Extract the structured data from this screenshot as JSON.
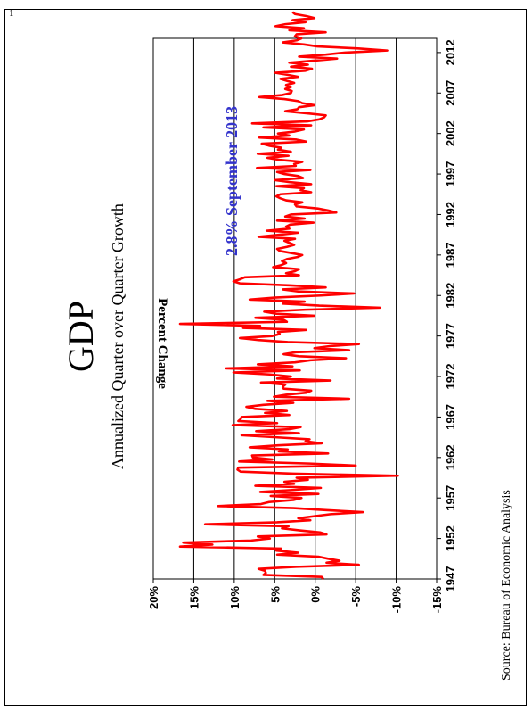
{
  "page_number": "1",
  "source": "Source: Bureau of Economic Analysis",
  "chart_data": {
    "type": "line",
    "title": "GDP",
    "subtitle": "Annualized Quarter over Quarter Growth",
    "annotation": "2.8% September 2013",
    "ylabel": "Percent Change",
    "xlabel": "",
    "xlim": [
      1947,
      2013.75
    ],
    "ylim": [
      -15,
      20
    ],
    "x_ticks": [
      1947,
      1952,
      1957,
      1962,
      1967,
      1972,
      1977,
      1982,
      1987,
      1992,
      1997,
      2002,
      2007,
      2012
    ],
    "y_ticks": [
      20,
      15,
      10,
      5,
      0,
      -5,
      -10,
      -15
    ],
    "y_tick_labels": [
      "20%",
      "15%",
      "10%",
      "5%",
      "0%",
      "-5%",
      "-10%",
      "-15%"
    ],
    "grid": "horizontal",
    "orientation": "rotated 90° counter-clockwise on the page",
    "colors": {
      "line": "#ff0000",
      "annotation": "#3333cc",
      "text": "#000000"
    },
    "series": [
      {
        "start_year": 1947.0,
        "step": 0.25,
        "values": [
          -1.0,
          -0.8,
          6.4,
          6.1,
          6.2,
          7.0,
          2.3,
          -5.4,
          -1.4,
          -3.0,
          -1.6,
          -0.4,
          4.7,
          2.1,
          4.8,
          4.2,
          16.7,
          12.7,
          16.3,
          7.9,
          5.6,
          7.1,
          -1.4,
          -0.6,
          1.9,
          4.1,
          3.3,
          13.6,
          4.7,
          0.6,
          2.1,
          0.1,
          -1.9,
          -5.9,
          -1.3,
          2.7,
          12.0,
          6.7,
          5.7,
          2.7,
          1.7,
          5.5,
          -0.4,
          6.8,
          2.6,
          -0.7,
          7.4,
          2.6,
          3.8,
          0.9,
          2.3,
          -10.2,
          2.7,
          9.2,
          9.6,
          9.5,
          -5.0,
          0.7,
          9.4,
          5.3,
          7.7,
          7.8,
          -1.6,
          4.5,
          3.4,
          8.1,
          4.6,
          -0.8,
          1.2,
          0.7,
          4.9,
          9.1,
          2.0,
          7.3,
          3.2,
          1.8,
          10.2,
          4.7,
          9.5,
          9.2,
          9.1,
          3.2,
          6.2,
          3.5,
          7.4,
          8.5,
          6.4,
          2.7,
          5.9,
          -4.2,
          5.1,
          3.6,
          1.1,
          0.5,
          3.9,
          4.0,
          3.7,
          6.7,
          -1.9,
          4.7,
          3.0,
          5.6,
          10.1,
          1.9,
          11.0,
          2.8,
          7.1,
          2.5,
          0.6,
          -3.8,
          2.0,
          3.9,
          2.4,
          -4.2,
          0.1,
          -1.8,
          -5.4,
          3.4,
          7.0,
          9.3,
          5.3,
          4.4,
          4.6,
          1.1,
          8.9,
          6.8,
          16.7,
          3.5,
          3.9,
          7.4,
          0.1,
          4.8,
          6.3,
          1.2,
          -8.0,
          -0.5,
          4.0,
          1.3,
          8.1,
          5.0,
          -0.7,
          -4.8,
          2.1,
          4.0,
          -1.3,
          3.0,
          9.3,
          10.1,
          9.3,
          8.7,
          2.0,
          3.6,
          2.5,
          2.0,
          5.2,
          4.2,
          3.6,
          4.1,
          3.5,
          2.2,
          1.6,
          3.0,
          4.4,
          4.7,
          3.5,
          2.6,
          3.2,
          3.8,
          2.5,
          7.0,
          4.5,
          2.1,
          6.0,
          3.2,
          3.6,
          3.1,
          0.2,
          4.7,
          1.3,
          3.7,
          3.0,
          -2.6,
          -1.6,
          -0.3,
          2.3,
          2.5,
          1.6,
          3.6,
          4.3,
          4.8,
          4.3,
          0.5,
          1.8,
          1.4,
          4.8,
          0.5,
          3.1,
          5.0,
          1.5,
          2.1,
          3.8,
          4.7,
          0.6,
          7.2,
          2.4,
          2.6,
          1.6,
          4.4,
          5.9,
          3.3,
          7.1,
          3.0,
          4.6,
          4.2,
          5.7,
          6.6,
          1.1,
          2.3,
          6.9,
          3.2,
          4.6,
          2.5,
          1.4,
          6.4,
          0.5,
          7.8,
          1.0,
          -0.5,
          -1.1,
          -1.3,
          1.1,
          3.7,
          2.2,
          2.0,
          0.1,
          1.6,
          2.1,
          3.8,
          6.9,
          4.1,
          3.0,
          2.9,
          3.7,
          3.0,
          3.6,
          2.6,
          3.5,
          4.3,
          2.1,
          3.4,
          4.9,
          1.2,
          0.4,
          3.0,
          0.9,
          3.2,
          0.1,
          -2.7,
          2.0,
          -1.3,
          -3.7,
          -8.9,
          -5.3,
          -0.3,
          1.4,
          4.0,
          2.3,
          1.7,
          2.5,
          2.3,
          -1.3,
          3.2,
          1.4,
          4.9,
          3.7,
          1.2,
          2.8,
          0.1,
          1.1,
          2.5,
          2.8
        ]
      }
    ]
  }
}
